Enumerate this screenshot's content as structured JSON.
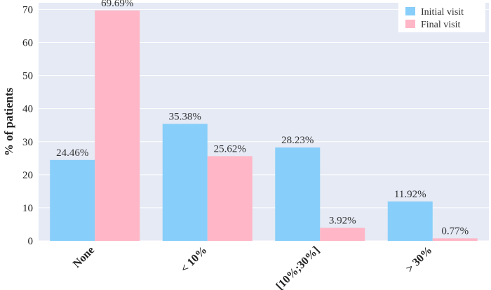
{
  "chart_data": {
    "type": "bar",
    "categories": [
      "None",
      "< 10%",
      "[10%;30%]",
      "> 30%"
    ],
    "series": [
      {
        "name": "Initial visit",
        "values": [
          24.46,
          35.38,
          28.23,
          11.92
        ],
        "labels": [
          "24.46%",
          "35.38%",
          "28.23%",
          "11.92%"
        ],
        "color": "#87CEFA"
      },
      {
        "name": "Final visit",
        "values": [
          69.69,
          25.62,
          3.92,
          0.77
        ],
        "labels": [
          "69.69%",
          "25.62%",
          "3.92%",
          "0.77%"
        ],
        "color": "#FFB6C6"
      }
    ],
    "title": "",
    "xlabel": "",
    "ylabel": "% of patients",
    "ylim": [
      0,
      72
    ],
    "yticks": [
      0,
      10,
      20,
      30,
      40,
      50,
      60,
      70
    ],
    "grid": true,
    "legend": "top-right",
    "background": "#E5EAF5"
  }
}
